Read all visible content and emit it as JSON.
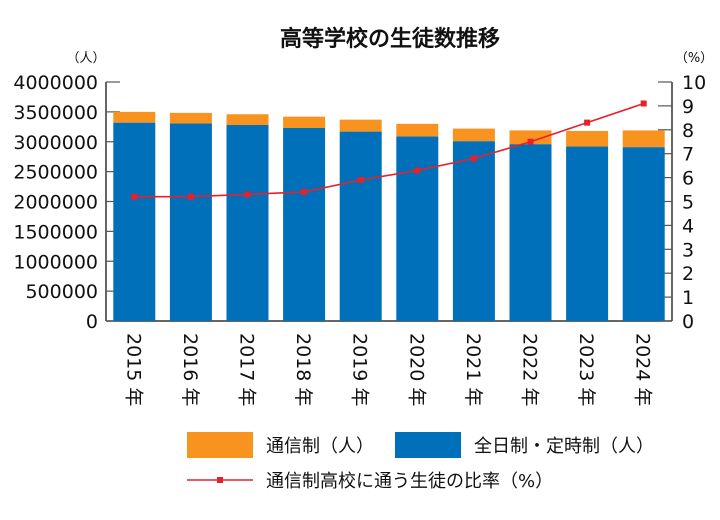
{
  "chart_data": {
    "type": "bar",
    "stacked": true,
    "title": "高等学校の生徒数推移",
    "ylabel_left_unit": "（人）",
    "ylabel_right_unit": "（%）",
    "categories": [
      "2015 年",
      "2016 年",
      "2017 年",
      "2018 年",
      "2019 年",
      "2020 年",
      "2021 年",
      "2022 年",
      "2023 年",
      "2024 年"
    ],
    "ylim_left": [
      0,
      4000000
    ],
    "yticks_left": [
      "0",
      "500000",
      "1000000",
      "1500000",
      "2000000",
      "2500000",
      "3000000",
      "3500000",
      "4000000"
    ],
    "ylim_right": [
      0,
      10
    ],
    "yticks_right": [
      "0",
      "1",
      "2",
      "3",
      "4",
      "5",
      "6",
      "7",
      "8",
      "9",
      "10"
    ],
    "series": [
      {
        "name": "全日制・定時制（人）",
        "kind": "bar",
        "axis": "left",
        "color": "#0070BA",
        "values": [
          3320000,
          3305000,
          3280000,
          3230000,
          3170000,
          3090000,
          3010000,
          2960000,
          2920000,
          2910000
        ]
      },
      {
        "name": "通信制（人）",
        "kind": "bar",
        "axis": "left",
        "color": "#F7931E",
        "values": [
          180000,
          178000,
          180000,
          190000,
          200000,
          210000,
          210000,
          230000,
          260000,
          280000
        ]
      },
      {
        "name": "通信制高校に通う生徒の比率（%）",
        "kind": "line",
        "axis": "right",
        "color": "#E8202A",
        "marker": "square",
        "values": [
          5.2,
          5.2,
          5.3,
          5.4,
          5.9,
          6.3,
          6.8,
          7.5,
          8.3,
          9.1
        ]
      }
    ],
    "grid": false,
    "legend": "bottom"
  }
}
